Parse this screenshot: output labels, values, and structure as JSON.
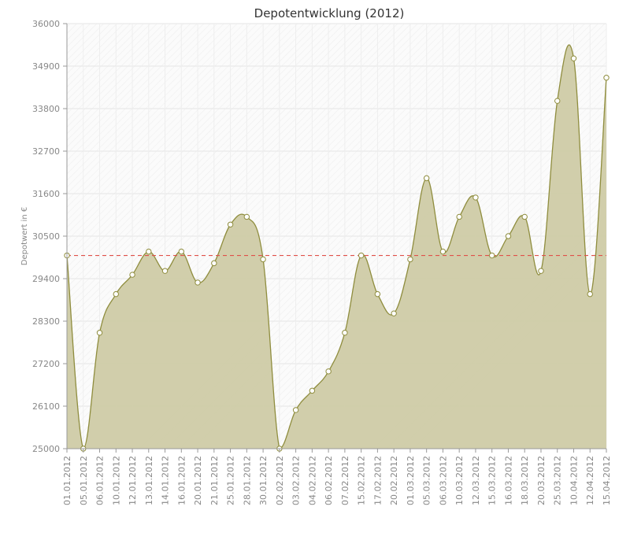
{
  "chart_data": {
    "type": "area",
    "title": "Depotentwicklung (2012)",
    "ylabel": "Depotwert in €",
    "xlabel": "",
    "ylim": [
      25000,
      36000
    ],
    "yticks": [
      25000,
      26100,
      27200,
      28300,
      29400,
      30500,
      31600,
      32700,
      33800,
      34900,
      36000
    ],
    "categories": [
      "01.01.2012",
      "05.01.2012",
      "06.01.2012",
      "10.01.2012",
      "12.01.2012",
      "13.01.2012",
      "14.01.2012",
      "16.01.2012",
      "20.01.2012",
      "21.01.2012",
      "25.01.2012",
      "28.01.2012",
      "30.01.2012",
      "02.02.2012",
      "03.02.2012",
      "04.02.2012",
      "06.02.2012",
      "07.02.2012",
      "15.02.2012",
      "17.02.2012",
      "20.02.2012",
      "01.03.2012",
      "05.03.2012",
      "06.03.2012",
      "10.03.2012",
      "12.03.2012",
      "15.03.2012",
      "16.03.2012",
      "18.03.2012",
      "20.03.2012",
      "25.03.2012",
      "10.04.2012",
      "12.04.2012",
      "15.04.2012"
    ],
    "series": [
      {
        "values": [
          30000,
          25000,
          28000,
          29000,
          29500,
          30100,
          29600,
          30100,
          29300,
          29800,
          30800,
          31000,
          29900,
          25000,
          26000,
          26500,
          27000,
          28000,
          30000,
          29000,
          28500,
          29900,
          32000,
          30100,
          31000,
          31500,
          30000,
          30500,
          31000,
          29600,
          34000,
          35100,
          29000,
          34600
        ],
        "bridge_extra": [
          null,
          null,
          null,
          null,
          null,
          null,
          null,
          null,
          null,
          null,
          null,
          31000,
          null,
          null,
          null,
          null,
          null,
          null,
          null,
          null,
          null,
          null,
          null,
          null,
          null,
          31600,
          null,
          null,
          31100,
          null,
          null,
          35800,
          null,
          null
        ]
      }
    ],
    "reference_line": {
      "value": 30000,
      "style": "dashed",
      "color": "#e0504a"
    },
    "grid": true,
    "legend": "none",
    "colors": {
      "fill": "#cfcba7",
      "stroke": "#8f8d3e",
      "marker_fill": "#ffffff",
      "marker_stroke": "#8f8d3e"
    }
  }
}
